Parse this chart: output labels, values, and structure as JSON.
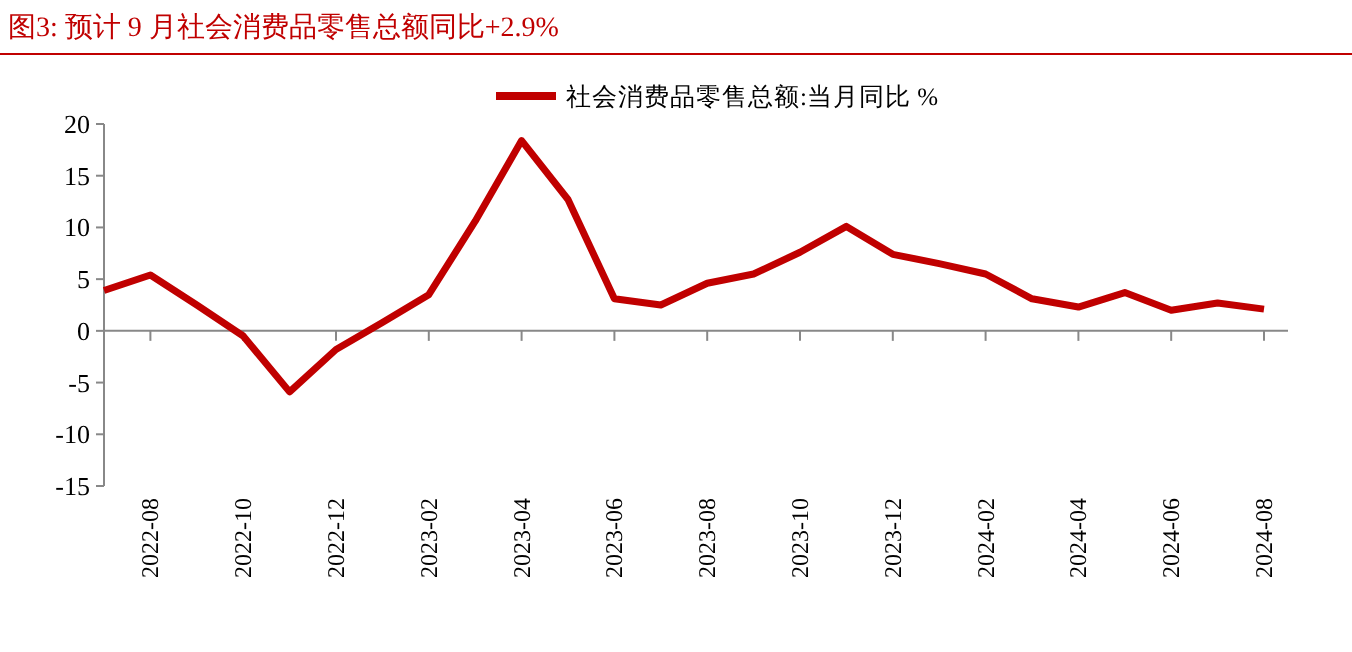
{
  "chart_data": {
    "type": "line",
    "title": "图3:   预计 9 月社会消费品零售总额同比+2.9%",
    "categories": [
      null,
      "2022-08",
      null,
      "2022-10",
      null,
      "2022-12",
      null,
      "2023-02",
      null,
      "2023-04",
      null,
      "2023-06",
      null,
      "2023-08",
      null,
      "2023-10",
      null,
      "2023-12",
      null,
      "2024-02",
      null,
      "2024-04",
      null,
      "2024-06",
      null,
      "2024-08"
    ],
    "series": [
      {
        "name": "社会消费品零售总额:当月同比 %",
        "color": "#c00000",
        "values": [
          3.9,
          5.4,
          2.5,
          -0.5,
          -5.9,
          -1.8,
          0.8,
          3.5,
          10.6,
          18.4,
          12.7,
          3.1,
          2.5,
          4.6,
          5.5,
          7.6,
          10.1,
          7.4,
          6.5,
          5.5,
          3.1,
          2.3,
          3.7,
          2.0,
          2.7,
          2.1
        ]
      }
    ],
    "ylim": [
      -15,
      20
    ],
    "yticks": [
      -15,
      -10,
      -5,
      0,
      5,
      10,
      15,
      20
    ],
    "legend": "top",
    "marker": "none",
    "line_style": "solid"
  }
}
